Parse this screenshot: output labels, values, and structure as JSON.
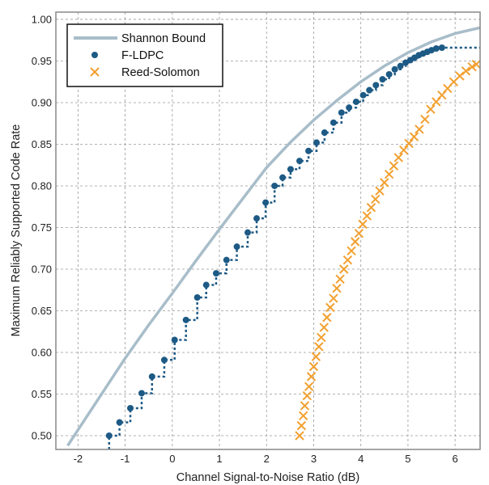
{
  "chart_data": {
    "type": "line",
    "title": "",
    "xlabel": "Channel Signal-to-Noise Ratio (dB)",
    "ylabel": "Maximum Reliably Supported Code Rate",
    "xlim": [
      -2.47,
      6.53
    ],
    "ylim": [
      0.4835,
      1.0087
    ],
    "xticks": [
      -2,
      -1,
      0,
      1,
      2,
      3,
      4,
      5,
      6
    ],
    "xtick_labels": [
      "-2",
      "-1",
      "0",
      "1",
      "2",
      "3",
      "4",
      "5",
      "6"
    ],
    "yticks": [
      0.5,
      0.55,
      0.6,
      0.65,
      0.7,
      0.75,
      0.8,
      0.85,
      0.9,
      0.95,
      1.0
    ],
    "ytick_labels": [
      "0.50",
      "0.55",
      "0.60",
      "0.65",
      "0.70",
      "0.75",
      "0.80",
      "0.85",
      "0.90",
      "0.95",
      "1.00"
    ],
    "grid": true,
    "legend_position": "top-left",
    "series": [
      {
        "name": "Shannon Bound",
        "style": "solid-line",
        "color": "#a8bdc9",
        "x": [
          -2.22,
          -2,
          -1.5,
          -1,
          -0.5,
          0,
          0.5,
          1,
          1.5,
          2,
          2.5,
          3,
          3.5,
          4,
          4.5,
          5,
          5.5,
          6,
          6.53
        ],
        "y": [
          0.488,
          0.507,
          0.55,
          0.593,
          0.633,
          0.671,
          0.71,
          0.748,
          0.785,
          0.822,
          0.852,
          0.879,
          0.903,
          0.925,
          0.944,
          0.96,
          0.973,
          0.983,
          0.99
        ]
      },
      {
        "name": "F-LDPC",
        "style": "dots-dotted-steps",
        "color": "#1d5a85",
        "x": [
          -1.34,
          -1.12,
          -0.89,
          -0.65,
          -0.43,
          -0.17,
          0.05,
          0.29,
          0.53,
          0.72,
          0.93,
          1.15,
          1.37,
          1.6,
          1.79,
          1.98,
          2.17,
          2.34,
          2.51,
          2.7,
          2.89,
          3.06,
          3.23,
          3.42,
          3.59,
          3.75,
          3.9,
          4.05,
          4.18,
          4.32,
          4.46,
          4.6,
          4.72,
          4.84,
          4.95,
          5.05,
          5.14,
          5.23,
          5.32,
          5.41,
          5.5,
          5.6,
          5.72
        ],
        "y": [
          0.5,
          0.516,
          0.533,
          0.551,
          0.571,
          0.591,
          0.615,
          0.639,
          0.666,
          0.681,
          0.695,
          0.711,
          0.727,
          0.744,
          0.761,
          0.78,
          0.8,
          0.81,
          0.82,
          0.83,
          0.842,
          0.852,
          0.864,
          0.876,
          0.888,
          0.894,
          0.901,
          0.909,
          0.915,
          0.921,
          0.928,
          0.934,
          0.94,
          0.944,
          0.948,
          0.951,
          0.954,
          0.957,
          0.959,
          0.961,
          0.963,
          0.965,
          0.966
        ]
      },
      {
        "name": "Reed-Solomon",
        "style": "x-markers",
        "color": "#f2a030",
        "x": [
          2.7,
          2.74,
          2.78,
          2.81,
          2.86,
          2.9,
          2.95,
          3.0,
          3.05,
          3.11,
          3.16,
          3.22,
          3.28,
          3.35,
          3.42,
          3.49,
          3.56,
          3.64,
          3.72,
          3.8,
          3.88,
          3.96,
          4.04,
          4.13,
          4.22,
          4.31,
          4.4,
          4.5,
          4.6,
          4.7,
          4.8,
          4.91,
          5.02,
          5.13,
          5.24,
          5.36,
          5.48,
          5.6,
          5.72,
          5.84,
          5.97,
          6.1,
          6.23,
          6.36,
          6.45
        ],
        "y": [
          0.5,
          0.512,
          0.524,
          0.536,
          0.548,
          0.559,
          0.571,
          0.583,
          0.595,
          0.607,
          0.618,
          0.63,
          0.642,
          0.654,
          0.665,
          0.677,
          0.688,
          0.7,
          0.711,
          0.722,
          0.733,
          0.743,
          0.754,
          0.764,
          0.774,
          0.784,
          0.794,
          0.804,
          0.814,
          0.824,
          0.834,
          0.843,
          0.851,
          0.859,
          0.868,
          0.88,
          0.892,
          0.901,
          0.909,
          0.917,
          0.925,
          0.932,
          0.938,
          0.943,
          0.946
        ]
      }
    ]
  }
}
